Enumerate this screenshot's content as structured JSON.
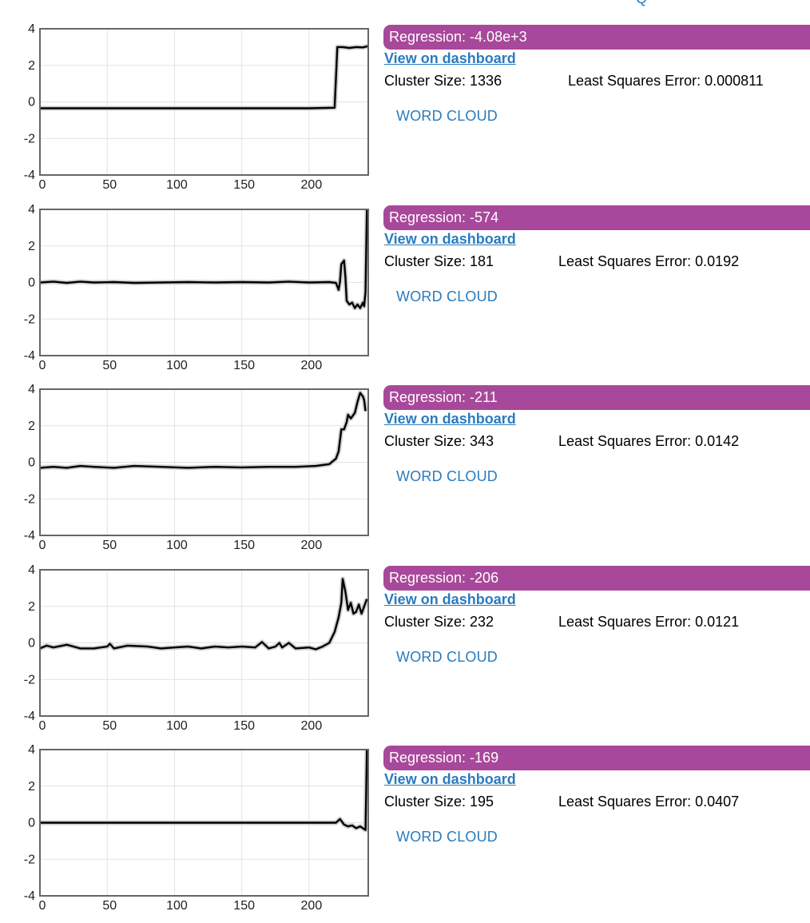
{
  "top_partial_text": "Q",
  "link_color": "#2a7bbf",
  "regression_color": "#a8489a",
  "clusters": [
    {
      "regression": "Regression: -4.08e+3",
      "dashboard_label": "View on dashboard",
      "cluster_size": "Cluster Size: 1336",
      "lse": "Least Squares Error: 0.000811",
      "wordcloud_label": "WORD CLOUD",
      "chart_data": {
        "type": "line",
        "xlim": [
          0,
          244
        ],
        "ylim": [
          -4,
          4
        ],
        "x_ticks": [
          "0",
          "50",
          "100",
          "150",
          "200"
        ],
        "y_ticks": [
          "4",
          "2",
          "0",
          "-2",
          "-4"
        ],
        "grid": true,
        "series": [
          {
            "points": [
              [
                0,
                -0.35
              ],
              [
                100,
                -0.35
              ],
              [
                200,
                -0.35
              ],
              [
                219,
                -0.32
              ],
              [
                221,
                3.0
              ],
              [
                225,
                3.0
              ],
              [
                230,
                2.95
              ],
              [
                235,
                3.0
              ],
              [
                240,
                2.98
              ],
              [
                244,
                3.05
              ]
            ]
          }
        ]
      }
    },
    {
      "regression": "Regression: -574",
      "dashboard_label": "View on dashboard",
      "cluster_size": "Cluster Size: 181",
      "lse": "Least Squares Error: 0.0192",
      "wordcloud_label": "WORD CLOUD",
      "chart_data": {
        "type": "line",
        "xlim": [
          0,
          244
        ],
        "ylim": [
          -4,
          4
        ],
        "x_ticks": [
          "0",
          "50",
          "100",
          "150",
          "200"
        ],
        "y_ticks": [
          "4",
          "2",
          "0",
          "-2",
          "-4"
        ],
        "grid": true,
        "series": [
          {
            "points": [
              [
                0,
                0.0
              ],
              [
                10,
                0.05
              ],
              [
                20,
                -0.02
              ],
              [
                30,
                0.05
              ],
              [
                40,
                0.0
              ],
              [
                55,
                0.02
              ],
              [
                70,
                -0.02
              ],
              [
                90,
                0.0
              ],
              [
                110,
                0.02
              ],
              [
                130,
                0.0
              ],
              [
                150,
                0.02
              ],
              [
                170,
                0.0
              ],
              [
                185,
                0.05
              ],
              [
                200,
                0.0
              ],
              [
                215,
                0.02
              ],
              [
                220,
                -0.02
              ],
              [
                222,
                -0.4
              ],
              [
                223,
                0.05
              ],
              [
                224,
                1.0
              ],
              [
                226,
                1.2
              ],
              [
                227,
                0.3
              ],
              [
                228,
                -1.0
              ],
              [
                230,
                -1.2
              ],
              [
                232,
                -1.1
              ],
              [
                234,
                -1.4
              ],
              [
                236,
                -1.2
              ],
              [
                238,
                -1.4
              ],
              [
                240,
                -1.1
              ],
              [
                241,
                -1.3
              ],
              [
                242,
                -0.5
              ],
              [
                243,
                4.0
              ]
            ]
          }
        ]
      }
    },
    {
      "regression": "Regression: -211",
      "dashboard_label": "View on dashboard",
      "cluster_size": "Cluster Size: 343",
      "lse": "Least Squares Error: 0.0142",
      "wordcloud_label": "WORD CLOUD",
      "chart_data": {
        "type": "line",
        "xlim": [
          0,
          244
        ],
        "ylim": [
          -4,
          4
        ],
        "x_ticks": [
          "0",
          "50",
          "100",
          "150",
          "200"
        ],
        "y_ticks": [
          "4",
          "2",
          "0",
          "-2",
          "-4"
        ],
        "grid": true,
        "series": [
          {
            "points": [
              [
                0,
                -0.3
              ],
              [
                10,
                -0.25
              ],
              [
                20,
                -0.3
              ],
              [
                30,
                -0.2
              ],
              [
                40,
                -0.25
              ],
              [
                55,
                -0.3
              ],
              [
                70,
                -0.2
              ],
              [
                90,
                -0.25
              ],
              [
                110,
                -0.3
              ],
              [
                130,
                -0.25
              ],
              [
                150,
                -0.28
              ],
              [
                170,
                -0.25
              ],
              [
                190,
                -0.25
              ],
              [
                205,
                -0.2
              ],
              [
                215,
                -0.1
              ],
              [
                220,
                0.2
              ],
              [
                222,
                0.6
              ],
              [
                224,
                1.8
              ],
              [
                226,
                1.8
              ],
              [
                228,
                2.2
              ],
              [
                229,
                2.6
              ],
              [
                231,
                2.4
              ],
              [
                233,
                2.6
              ],
              [
                234,
                2.7
              ],
              [
                236,
                3.3
              ],
              [
                238,
                3.8
              ],
              [
                240,
                3.6
              ],
              [
                241,
                3.4
              ],
              [
                242,
                2.8
              ]
            ]
          }
        ]
      }
    },
    {
      "regression": "Regression: -206",
      "dashboard_label": "View on dashboard",
      "cluster_size": "Cluster Size: 232",
      "lse": "Least Squares Error: 0.0121",
      "wordcloud_label": "WORD CLOUD",
      "chart_data": {
        "type": "line",
        "xlim": [
          0,
          244
        ],
        "ylim": [
          -4,
          4
        ],
        "x_ticks": [
          "0",
          "50",
          "100",
          "150",
          "200"
        ],
        "y_ticks": [
          "4",
          "2",
          "0",
          "-2",
          "-4"
        ],
        "grid": true,
        "series": [
          {
            "points": [
              [
                0,
                -0.3
              ],
              [
                5,
                -0.15
              ],
              [
                10,
                -0.25
              ],
              [
                20,
                -0.1
              ],
              [
                30,
                -0.3
              ],
              [
                40,
                -0.3
              ],
              [
                50,
                -0.2
              ],
              [
                52,
                -0.05
              ],
              [
                55,
                -0.3
              ],
              [
                65,
                -0.15
              ],
              [
                80,
                -0.2
              ],
              [
                90,
                -0.3
              ],
              [
                100,
                -0.25
              ],
              [
                110,
                -0.2
              ],
              [
                120,
                -0.3
              ],
              [
                130,
                -0.2
              ],
              [
                140,
                -0.25
              ],
              [
                150,
                -0.2
              ],
              [
                160,
                -0.25
              ],
              [
                165,
                0.05
              ],
              [
                170,
                -0.3
              ],
              [
                175,
                -0.2
              ],
              [
                178,
                0.0
              ],
              [
                180,
                -0.25
              ],
              [
                185,
                0.0
              ],
              [
                190,
                -0.3
              ],
              [
                200,
                -0.25
              ],
              [
                205,
                -0.35
              ],
              [
                210,
                -0.2
              ],
              [
                215,
                0.0
              ],
              [
                219,
                0.6
              ],
              [
                222,
                1.4
              ],
              [
                224,
                2.2
              ],
              [
                225,
                3.5
              ],
              [
                227,
                2.8
              ],
              [
                229,
                1.8
              ],
              [
                231,
                2.2
              ],
              [
                233,
                1.6
              ],
              [
                235,
                1.7
              ],
              [
                237,
                2.1
              ],
              [
                239,
                1.6
              ],
              [
                241,
                2.0
              ],
              [
                243,
                2.4
              ]
            ]
          }
        ]
      }
    },
    {
      "regression": "Regression: -169",
      "dashboard_label": "View on dashboard",
      "cluster_size": "Cluster Size: 195",
      "lse": "Least Squares Error: 0.0407",
      "wordcloud_label": "WORD CLOUD",
      "chart_data": {
        "type": "line",
        "xlim": [
          0,
          244
        ],
        "ylim": [
          -4,
          4
        ],
        "x_ticks": [
          "0",
          "50",
          "100",
          "150",
          "200"
        ],
        "y_ticks": [
          "4",
          "2",
          "0",
          "-2",
          "-4"
        ],
        "grid": true,
        "series": [
          {
            "points": [
              [
                0,
                0.0
              ],
              [
                100,
                0.0
              ],
              [
                200,
                0.0
              ],
              [
                220,
                0.0
              ],
              [
                223,
                0.2
              ],
              [
                226,
                -0.1
              ],
              [
                229,
                -0.2
              ],
              [
                232,
                -0.15
              ],
              [
                235,
                -0.3
              ],
              [
                238,
                -0.2
              ],
              [
                240,
                -0.3
              ],
              [
                242,
                -0.4
              ],
              [
                243,
                4.0
              ]
            ]
          }
        ]
      }
    }
  ]
}
